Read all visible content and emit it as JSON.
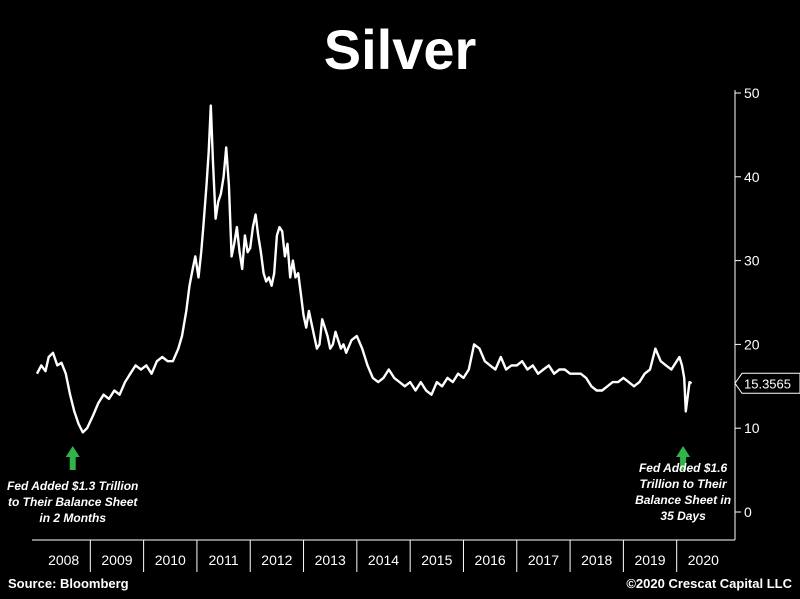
{
  "title": "Silver",
  "footer": {
    "source": "Source: Bloomberg",
    "copyright": "©2020 Crescat Capital LLC"
  },
  "colors": {
    "background": "#000000",
    "line": "#ffffff",
    "arrow": "#2fb34a",
    "axis": "#ffffff"
  },
  "chart_data": {
    "type": "line",
    "title": "Silver",
    "xlabel": "",
    "ylabel": "",
    "x_ticks": [
      "2008",
      "2009",
      "2010",
      "2011",
      "2012",
      "2013",
      "2014",
      "2015",
      "2016",
      "2017",
      "2018",
      "2019",
      "2020"
    ],
    "y_ticks": [
      0,
      10,
      20,
      30,
      40,
      50
    ],
    "ylim": [
      0,
      50
    ],
    "xlim": [
      2008.0,
      2021.0
    ],
    "grid": false,
    "last_value_label": "15.3565",
    "series": [
      {
        "x": [
          2008.0,
          2008.08,
          2008.16,
          2008.22,
          2008.3,
          2008.38,
          2008.46,
          2008.54,
          2008.62,
          2008.7,
          2008.78,
          2008.86,
          2008.94,
          2009.05,
          2009.15,
          2009.25,
          2009.35,
          2009.45,
          2009.55,
          2009.65,
          2009.75,
          2009.85,
          2009.95,
          2010.05,
          2010.15,
          2010.25,
          2010.35,
          2010.45,
          2010.55,
          2010.65,
          2010.72,
          2010.8,
          2010.86,
          2010.92,
          2010.97,
          2011.03,
          2011.08,
          2011.12,
          2011.18,
          2011.22,
          2011.26,
          2011.3,
          2011.35,
          2011.4,
          2011.45,
          2011.5,
          2011.55,
          2011.6,
          2011.65,
          2011.7,
          2011.75,
          2011.8,
          2011.85,
          2011.9,
          2011.95,
          2012.0,
          2012.05,
          2012.1,
          2012.15,
          2012.2,
          2012.25,
          2012.3,
          2012.35,
          2012.4,
          2012.45,
          2012.5,
          2012.55,
          2012.6,
          2012.65,
          2012.7,
          2012.75,
          2012.8,
          2012.85,
          2012.9,
          2012.95,
          2013.0,
          2013.05,
          2013.1,
          2013.15,
          2013.2,
          2013.25,
          2013.3,
          2013.35,
          2013.4,
          2013.45,
          2013.5,
          2013.55,
          2013.6,
          2013.65,
          2013.7,
          2013.75,
          2013.8,
          2013.9,
          2014.0,
          2014.1,
          2014.2,
          2014.3,
          2014.4,
          2014.5,
          2014.6,
          2014.7,
          2014.8,
          2014.9,
          2015.0,
          2015.1,
          2015.2,
          2015.3,
          2015.4,
          2015.5,
          2015.6,
          2015.7,
          2015.8,
          2015.9,
          2016.0,
          2016.1,
          2016.2,
          2016.3,
          2016.4,
          2016.5,
          2016.6,
          2016.7,
          2016.8,
          2016.9,
          2017.0,
          2017.1,
          2017.2,
          2017.3,
          2017.4,
          2017.5,
          2017.6,
          2017.7,
          2017.8,
          2017.9,
          2018.0,
          2018.1,
          2018.2,
          2018.3,
          2018.4,
          2018.5,
          2018.6,
          2018.7,
          2018.8,
          2018.9,
          2019.0,
          2019.1,
          2019.2,
          2019.3,
          2019.4,
          2019.5,
          2019.6,
          2019.7,
          2019.8,
          2019.9,
          2020.0,
          2020.05,
          2020.1,
          2020.14,
          2020.17,
          2020.2,
          2020.24,
          2020.28
        ],
        "values": [
          16.5,
          17.5,
          16.8,
          18.5,
          19.0,
          17.5,
          17.8,
          16.5,
          14.0,
          12.0,
          10.5,
          9.5,
          10.0,
          11.5,
          13.0,
          14.0,
          13.5,
          14.5,
          14.0,
          15.5,
          16.5,
          17.5,
          17.0,
          17.5,
          16.5,
          18.0,
          18.5,
          18.0,
          18.0,
          19.5,
          21.0,
          24.0,
          27.0,
          29.0,
          30.5,
          28.0,
          31.0,
          34.0,
          39.0,
          43.0,
          48.5,
          42.0,
          35.0,
          37.0,
          38.0,
          40.0,
          43.5,
          39.0,
          30.5,
          32.0,
          34.0,
          31.0,
          29.0,
          33.0,
          31.0,
          31.5,
          34.0,
          35.5,
          33.0,
          31.0,
          28.5,
          27.5,
          28.0,
          27.0,
          28.5,
          33.0,
          34.0,
          33.5,
          30.5,
          32.0,
          28.0,
          30.0,
          28.0,
          28.5,
          26.0,
          23.5,
          22.0,
          24.0,
          22.5,
          21.0,
          19.5,
          20.0,
          23.0,
          22.0,
          21.0,
          19.5,
          20.0,
          21.5,
          20.5,
          19.5,
          20.0,
          19.0,
          20.5,
          21.0,
          19.5,
          17.5,
          16.0,
          15.5,
          16.0,
          17.0,
          16.0,
          15.5,
          15.0,
          15.5,
          14.5,
          15.5,
          14.5,
          14.0,
          15.5,
          15.0,
          16.0,
          15.5,
          16.5,
          16.0,
          17.0,
          20.0,
          19.5,
          18.0,
          17.5,
          17.0,
          18.5,
          17.0,
          17.5,
          17.5,
          18.0,
          17.0,
          17.5,
          16.5,
          17.0,
          17.5,
          16.5,
          17.0,
          17.0,
          16.5,
          16.5,
          16.5,
          16.0,
          15.0,
          14.5,
          14.5,
          15.0,
          15.5,
          15.5,
          16.0,
          15.5,
          15.0,
          15.5,
          16.5,
          17.0,
          19.5,
          18.0,
          17.5,
          17.0,
          18.0,
          18.5,
          17.5,
          16.0,
          12.0,
          13.5,
          15.5,
          15.36
        ]
      }
    ],
    "annotations": [
      {
        "x": 2008.67,
        "y": 10,
        "text": "Fed Added $1.3 Trillion to Their Balance Sheet in 2 Months",
        "lines": [
          "Fed Added $1.3 Trillion",
          "to Their Balance Sheet",
          "in 2 Months"
        ]
      },
      {
        "x": 2020.12,
        "y": 10,
        "text": "Fed Added $1.6 Trillion to Their Balance Sheet in 35 Days",
        "lines": [
          "Fed Added $1.6",
          "Trillion to Their",
          "Balance Sheet in",
          "35 Days"
        ]
      }
    ]
  }
}
